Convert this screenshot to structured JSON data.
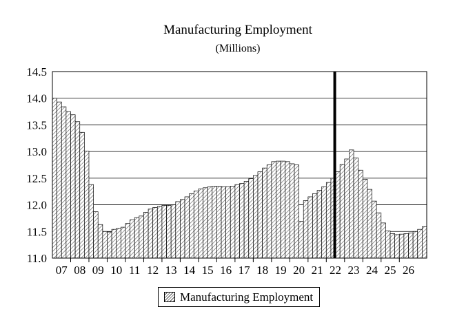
{
  "chart_data": {
    "type": "bar",
    "title": "Manufacturing Employment",
    "subtitle": "(Millions)",
    "xlabel": "",
    "ylabel": "",
    "ylim": [
      11.0,
      14.5
    ],
    "yticks": [
      "11.0",
      "11.5",
      "12.0",
      "12.5",
      "13.0",
      "13.5",
      "14.0",
      "14.5"
    ],
    "xtick_labels": [
      "07",
      "08",
      "09",
      "10",
      "11",
      "12",
      "13",
      "14",
      "15",
      "16",
      "17",
      "18",
      "19",
      "20",
      "21",
      "22",
      "23",
      "24",
      "25",
      "26"
    ],
    "bars_per_year": 4,
    "grid": "horizontal",
    "legend": "bottom-center",
    "series": [
      {
        "name": "Manufacturing Employment",
        "values": [
          14.0,
          13.93,
          13.84,
          13.75,
          13.69,
          13.56,
          13.36,
          13.01,
          12.38,
          11.87,
          11.63,
          11.5,
          11.49,
          11.54,
          11.56,
          11.58,
          11.65,
          11.72,
          11.76,
          11.79,
          11.86,
          11.92,
          11.95,
          11.97,
          11.99,
          11.99,
          12.0,
          12.06,
          12.1,
          12.15,
          12.21,
          12.26,
          12.3,
          12.32,
          12.34,
          12.35,
          12.35,
          12.34,
          12.34,
          12.35,
          12.38,
          12.4,
          12.44,
          12.49,
          12.55,
          12.62,
          12.69,
          12.75,
          12.81,
          12.82,
          12.82,
          12.81,
          12.77,
          12.75,
          11.69,
          12.08,
          12.15,
          12.21,
          12.27,
          12.34,
          12.42,
          12.5,
          12.62,
          12.76,
          12.86,
          13.03,
          12.88,
          12.65,
          12.48,
          12.29,
          12.07,
          11.85,
          11.66,
          11.51,
          11.46,
          11.44,
          11.45,
          11.46,
          11.47,
          11.5,
          11.54,
          11.59
        ]
      }
    ],
    "annotations": [
      {
        "type": "vertical-line",
        "x": "2022 Q3"
      }
    ],
    "colors": {
      "bar_fill_pattern": "#555555",
      "bar_outline": "#000000",
      "grid": "#000000",
      "marker_line": "#000000"
    }
  }
}
